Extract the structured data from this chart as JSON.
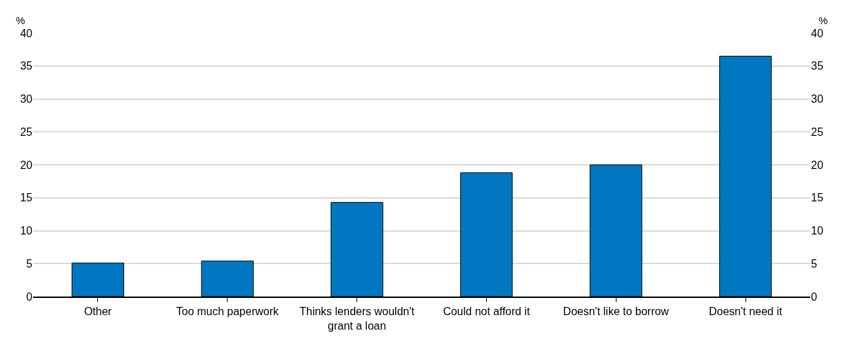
{
  "chart_data": {
    "type": "bar",
    "categories": [
      "Other",
      "Too much paperwork",
      "Thinks lenders wouldn't grant a loan",
      "Could not afford it",
      "Doesn't like to borrow",
      "Doesn't need it"
    ],
    "values": [
      5.1,
      5.4,
      14.3,
      18.8,
      20.0,
      36.5
    ],
    "color": "#0077c0",
    "ylabel": "%",
    "y2label": "%",
    "ylim": [
      0,
      40
    ],
    "yticks": [
      0,
      5,
      10,
      15,
      20,
      25,
      30,
      35,
      40
    ],
    "y2lim": [
      0,
      40
    ],
    "y2ticks": [
      0,
      5,
      10,
      15,
      20,
      25,
      30,
      35,
      40
    ],
    "grid": "y"
  }
}
